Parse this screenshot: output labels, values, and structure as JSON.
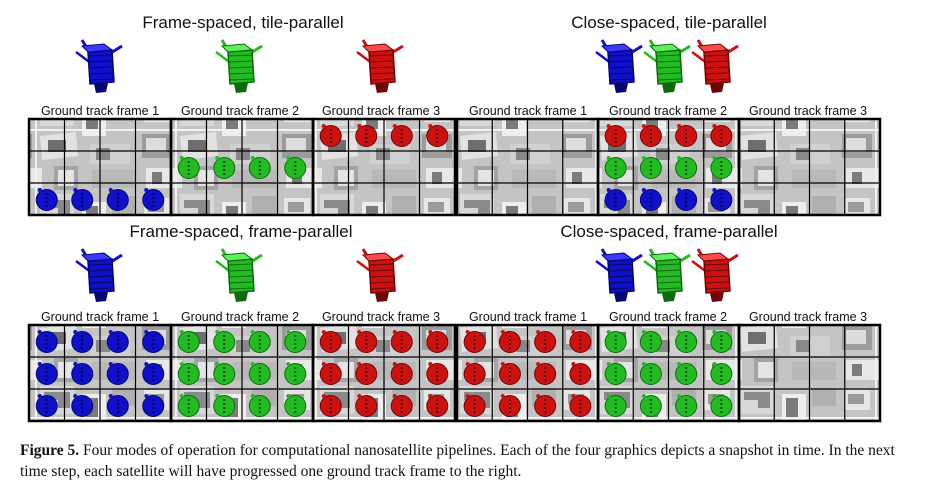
{
  "panels": [
    {
      "title": "Frame-spaced, tile-parallel",
      "frame_labels": [
        "Ground track frame 1",
        "Ground track frame 2",
        "Ground track frame 3"
      ],
      "satellite_colors": [
        "blue",
        "green",
        "red"
      ],
      "frames": [
        {
          "rows": [
            "none",
            "none",
            "blue"
          ]
        },
        {
          "rows": [
            "none",
            "green",
            "none"
          ]
        },
        {
          "rows": [
            "red",
            "none",
            "none"
          ]
        }
      ]
    },
    {
      "title": "Close-spaced, tile-parallel",
      "frame_labels": [
        "Ground track frame 1",
        "Ground track frame 2",
        "Ground track frame 3"
      ],
      "satellite_colors": [
        "blue",
        "green",
        "red"
      ],
      "frames": [
        {
          "rows": [
            "none",
            "none",
            "none"
          ]
        },
        {
          "rows": [
            "red",
            "green",
            "blue"
          ]
        },
        {
          "rows": [
            "none",
            "none",
            "none"
          ]
        }
      ]
    },
    {
      "title": "Frame-spaced, frame-parallel",
      "frame_labels": [
        "Ground track frame 1",
        "Ground track frame 2",
        "Ground track frame 3"
      ],
      "satellite_colors": [
        "blue",
        "green",
        "red"
      ],
      "frames": [
        {
          "rows": [
            "blue",
            "blue",
            "blue"
          ]
        },
        {
          "rows": [
            "green",
            "green",
            "green"
          ]
        },
        {
          "rows": [
            "red",
            "red",
            "red"
          ]
        }
      ]
    },
    {
      "title": "Close-spaced, frame-parallel",
      "frame_labels": [
        "Ground track frame 1",
        "Ground track frame 2",
        "Ground track frame 3"
      ],
      "satellite_colors": [
        "blue",
        "green",
        "red"
      ],
      "frames": [
        {
          "rows": [
            "red",
            "red",
            "red"
          ]
        },
        {
          "rows": [
            "green",
            "green",
            "green"
          ]
        },
        {
          "rows": [
            "none",
            "none",
            "none"
          ]
        }
      ]
    }
  ],
  "colors": {
    "blue": {
      "fill": "#1010c8",
      "dark": "#06066e",
      "light": "#3a3aff"
    },
    "green": {
      "fill": "#22bb22",
      "dark": "#0d6a0d",
      "light": "#5cf05c"
    },
    "red": {
      "fill": "#cc1111",
      "dark": "#6e0606",
      "light": "#ff4a4a"
    },
    "terrain_light": "#d9d9d9",
    "terrain_mid": "#a8a8a8",
    "terrain_dark": "#6a6a6a"
  },
  "caption": {
    "label": "Figure 5.",
    "text": "Four modes of operation for computational nanosatellite pipelines. Each of the four graphics depicts a snapshot in time. In the next time step, each satellite will have progressed one ground track frame to the right."
  }
}
